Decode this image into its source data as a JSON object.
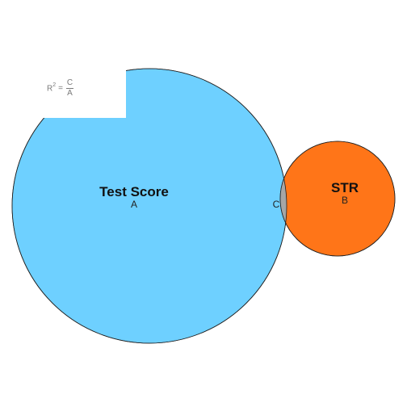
{
  "diagram": {
    "sets": [
      {
        "id": "A",
        "title": "Test Score",
        "region_label": "A",
        "color": "#6ED0FF"
      },
      {
        "id": "B",
        "title": "STR",
        "region_label": "B",
        "color": "#FF7518"
      }
    ],
    "overlap": {
      "region_label": "C",
      "color": "#A6A6A6"
    },
    "formula": {
      "lhs": "R",
      "exponent": "2",
      "equals": "=",
      "numerator": "C",
      "denominator": "A"
    }
  }
}
